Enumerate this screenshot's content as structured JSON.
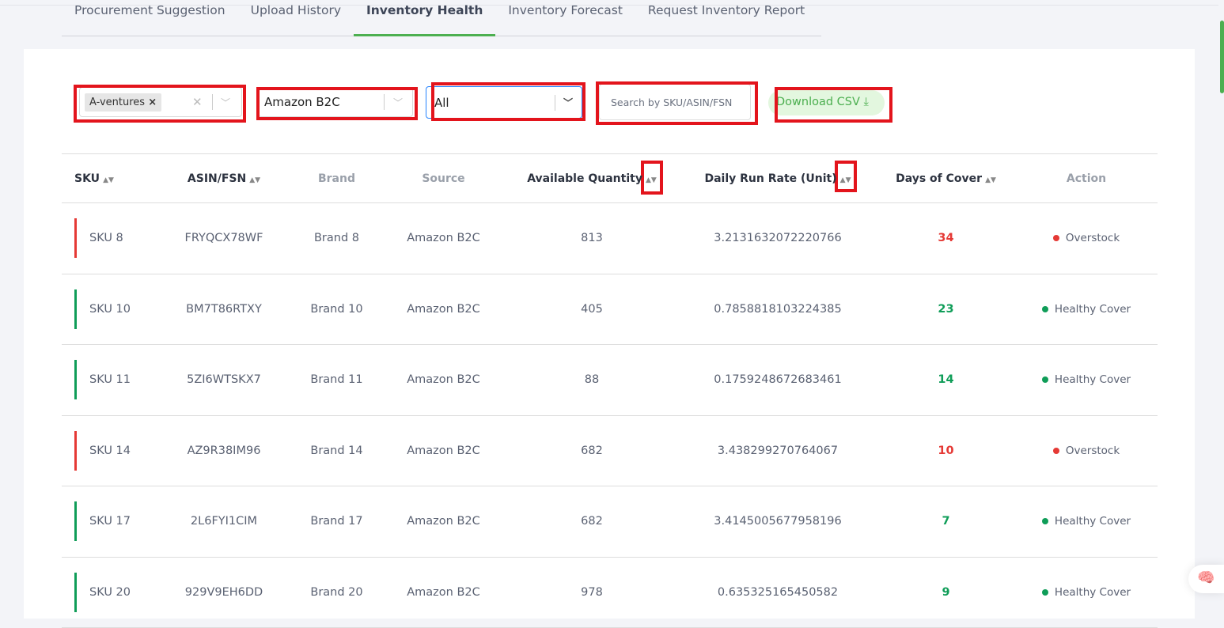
{
  "tabs": [
    {
      "label": "Procurement Suggestion"
    },
    {
      "label": "Upload History"
    },
    {
      "label": "Inventory Health",
      "active": true
    },
    {
      "label": "Inventory Forecast"
    },
    {
      "label": "Request Inventory Report"
    }
  ],
  "filters": {
    "company_chip": "A-ventures",
    "channel": "Amazon B2C",
    "status": "All",
    "search_placeholder": "Search by SKU/ASIN/FSN",
    "download_label": "Download CSV"
  },
  "columns": [
    "SKU",
    "ASIN/FSN",
    "Brand",
    "Source",
    "Available Quantity",
    "Daily Run Rate (Unit)",
    "Days of Cover",
    "Action"
  ],
  "colors": {
    "accent": "#4caf50",
    "overstock": "#e53935",
    "healthy": "#0f9d58"
  },
  "rows": [
    {
      "sku": "SKU 8",
      "asin": "FRYQCX78WF",
      "brand": "Brand 8",
      "source": "Amazon B2C",
      "qty": "813",
      "rate": "3.2131632072220766",
      "days": "34",
      "action": "Overstock",
      "status": "overstock"
    },
    {
      "sku": "SKU 10",
      "asin": "BM7T86RTXY",
      "brand": "Brand 10",
      "source": "Amazon B2C",
      "qty": "405",
      "rate": "0.7858818103224385",
      "days": "23",
      "action": "Healthy Cover",
      "status": "healthy"
    },
    {
      "sku": "SKU 11",
      "asin": "5ZI6WTSKX7",
      "brand": "Brand 11",
      "source": "Amazon B2C",
      "qty": "88",
      "rate": "0.1759248672683461",
      "days": "14",
      "action": "Healthy Cover",
      "status": "healthy"
    },
    {
      "sku": "SKU 14",
      "asin": "AZ9R38IM96",
      "brand": "Brand 14",
      "source": "Amazon B2C",
      "qty": "682",
      "rate": "3.438299270764067",
      "days": "10",
      "action": "Overstock",
      "status": "overstock"
    },
    {
      "sku": "SKU 17",
      "asin": "2L6FYI1CIM",
      "brand": "Brand 17",
      "source": "Amazon B2C",
      "qty": "682",
      "rate": "3.4145005677958196",
      "days": "7",
      "action": "Healthy Cover",
      "status": "healthy"
    },
    {
      "sku": "SKU 20",
      "asin": "929V9EH6DD",
      "brand": "Brand 20",
      "source": "Amazon B2C",
      "qty": "978",
      "rate": "0.635325165450582",
      "days": "9",
      "action": "Healthy Cover",
      "status": "healthy"
    }
  ]
}
